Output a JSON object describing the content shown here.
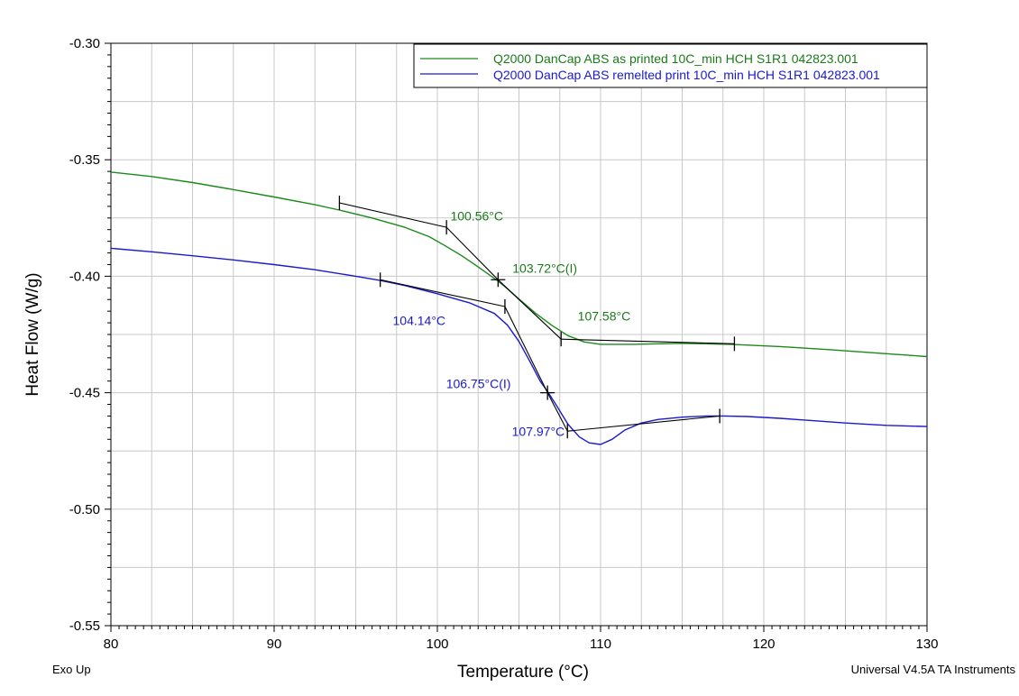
{
  "chart_data": {
    "type": "line",
    "xlabel": "Temperature (°C)",
    "ylabel": "Heat Flow (W/g)",
    "xlim": [
      80,
      130
    ],
    "ylim": [
      -0.55,
      -0.3
    ],
    "x_ticks": [
      80,
      90,
      100,
      110,
      120,
      130
    ],
    "y_ticks": [
      -0.55,
      -0.5,
      -0.45,
      -0.4,
      -0.35,
      -0.3
    ],
    "x_tick_labels": [
      "80",
      "90",
      "100",
      "110",
      "120",
      "130"
    ],
    "y_tick_labels": [
      "-0.55",
      "-0.50",
      "-0.45",
      "-0.40",
      "-0.35",
      "-0.30"
    ],
    "grid": true,
    "legend_position": "top-right",
    "footer_left": "Exo Up",
    "footer_right": "Universal V4.5A TA Instruments",
    "series": [
      {
        "name": "Q2000 DanCap ABS as printed 10C_min HCH S1R1 042823.001",
        "color": "#1a8a1a",
        "text_color": "#1a7a1a",
        "x": [
          80,
          82.5,
          85,
          87.5,
          90,
          92.5,
          94,
          96,
          98,
          99.5,
          100.5,
          101.5,
          102.5,
          103.2,
          103.7,
          104.2,
          105,
          106,
          107,
          108,
          109,
          110,
          112,
          115,
          118,
          121,
          124,
          127,
          130
        ],
        "y": [
          -0.3553,
          -0.3572,
          -0.3598,
          -0.3628,
          -0.366,
          -0.3693,
          -0.3716,
          -0.375,
          -0.379,
          -0.383,
          -0.387,
          -0.3912,
          -0.396,
          -0.3995,
          -0.402,
          -0.4048,
          -0.4098,
          -0.4158,
          -0.421,
          -0.4255,
          -0.4282,
          -0.4292,
          -0.4292,
          -0.4288,
          -0.4292,
          -0.4302,
          -0.4315,
          -0.433,
          -0.4345
        ]
      },
      {
        "name": "Q2000 DanCap ABS remelted print 10C_min HCH S1R1 042823.001",
        "color": "#1a1acc",
        "text_color": "#1a1acc",
        "x": [
          80,
          82.5,
          85,
          87.5,
          90,
          92.5,
          95,
          96.5,
          98,
          100,
          102,
          103.5,
          104.3,
          105,
          105.7,
          106.3,
          106.8,
          107.3,
          108,
          108.7,
          109.3,
          110,
          110.7,
          111.5,
          112.5,
          113.5,
          115,
          116.5,
          117.5,
          119,
          121,
          123,
          125,
          127.5,
          130
        ],
        "y": [
          -0.388,
          -0.3895,
          -0.3912,
          -0.393,
          -0.395,
          -0.3972,
          -0.4,
          -0.4018,
          -0.404,
          -0.4075,
          -0.4115,
          -0.416,
          -0.421,
          -0.428,
          -0.437,
          -0.445,
          -0.45,
          -0.4555,
          -0.4635,
          -0.469,
          -0.4715,
          -0.4722,
          -0.47,
          -0.466,
          -0.463,
          -0.4615,
          -0.4605,
          -0.46,
          -0.46,
          -0.4602,
          -0.461,
          -0.462,
          -0.463,
          -0.464,
          -0.4645
        ]
      }
    ],
    "tangent_lines": [
      {
        "color": "#000000",
        "points": [
          [
            94.0,
            -0.3685
          ],
          [
            100.56,
            -0.379
          ]
        ]
      },
      {
        "color": "#000000",
        "points": [
          [
            100.56,
            -0.379
          ],
          [
            103.72,
            -0.4015
          ],
          [
            107.58,
            -0.427
          ]
        ]
      },
      {
        "color": "#000000",
        "points": [
          [
            107.58,
            -0.427
          ],
          [
            118.2,
            -0.429
          ]
        ]
      },
      {
        "color": "#000000",
        "points": [
          [
            96.5,
            -0.4015
          ],
          [
            104.14,
            -0.413
          ]
        ]
      },
      {
        "color": "#000000",
        "points": [
          [
            104.14,
            -0.413
          ],
          [
            106.75,
            -0.45
          ],
          [
            107.97,
            -0.4665
          ]
        ]
      },
      {
        "color": "#000000",
        "points": [
          [
            107.97,
            -0.4665
          ],
          [
            117.3,
            -0.46
          ]
        ]
      }
    ],
    "markers": [
      {
        "x": 94.0,
        "y": -0.3685,
        "kind": "tick"
      },
      {
        "x": 100.56,
        "y": -0.379,
        "kind": "tick"
      },
      {
        "x": 103.72,
        "y": -0.4015,
        "kind": "cross"
      },
      {
        "x": 107.58,
        "y": -0.427,
        "kind": "tick"
      },
      {
        "x": 118.2,
        "y": -0.429,
        "kind": "tick"
      },
      {
        "x": 96.5,
        "y": -0.4015,
        "kind": "tick"
      },
      {
        "x": 104.14,
        "y": -0.413,
        "kind": "tick"
      },
      {
        "x": 106.75,
        "y": -0.45,
        "kind": "cross"
      },
      {
        "x": 107.97,
        "y": -0.4665,
        "kind": "tick"
      },
      {
        "x": 117.3,
        "y": -0.46,
        "kind": "tick"
      }
    ],
    "annotations": [
      {
        "text": "100.56°C",
        "x": 100.8,
        "y": -0.376,
        "color": "#1a7a1a",
        "anchor": "start"
      },
      {
        "text": "103.72°C(I)",
        "x": 104.6,
        "y": -0.3985,
        "color": "#1a7a1a",
        "anchor": "start"
      },
      {
        "text": "107.58°C",
        "x": 108.6,
        "y": -0.419,
        "color": "#1a7a1a",
        "anchor": "start"
      },
      {
        "text": "104.14°C",
        "x": 100.5,
        "y": -0.421,
        "color": "#1a1acc",
        "anchor": "end"
      },
      {
        "text": "106.75°C(I)",
        "x": 104.5,
        "y": -0.448,
        "color": "#1a1acc",
        "anchor": "end"
      },
      {
        "text": "107.97°C",
        "x": 107.8,
        "y": -0.4685,
        "color": "#1a1acc",
        "anchor": "end"
      }
    ]
  }
}
